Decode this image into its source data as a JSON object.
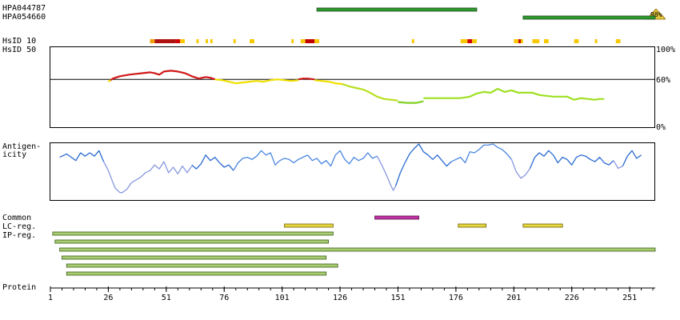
{
  "antibodies": [
    {
      "id": "HPA044787",
      "start": 116,
      "end": 185,
      "coverage_badge": ""
    },
    {
      "id": "HPA054660",
      "start": 205,
      "end": 262,
      "coverage_badge": "98%"
    }
  ],
  "hsid_labels": {
    "hsid10": "HsID 10",
    "hsid50": "HsID 50"
  },
  "hsid_marks": [
    {
      "start": 44,
      "end": 46,
      "color": "#f0a000"
    },
    {
      "start": 46,
      "end": 55,
      "color": "#b01010"
    },
    {
      "start": 55,
      "end": 57,
      "color": "#d00000"
    },
    {
      "start": 57,
      "end": 59,
      "color": "#f8c800"
    },
    {
      "start": 64,
      "end": 65,
      "color": "#f8c800"
    },
    {
      "start": 68,
      "end": 69,
      "color": "#f8c800"
    },
    {
      "start": 70,
      "end": 71,
      "color": "#f8c800"
    },
    {
      "start": 80,
      "end": 81,
      "color": "#f8c800"
    },
    {
      "start": 87,
      "end": 89,
      "color": "#f8c800"
    },
    {
      "start": 105,
      "end": 106,
      "color": "#f8c800"
    },
    {
      "start": 109,
      "end": 111,
      "color": "#f8c800"
    },
    {
      "start": 111,
      "end": 115,
      "color": "#c00000"
    },
    {
      "start": 115,
      "end": 117,
      "color": "#f8c800"
    },
    {
      "start": 157,
      "end": 158,
      "color": "#f8c800"
    },
    {
      "start": 178,
      "end": 181,
      "color": "#f8c800"
    },
    {
      "start": 181,
      "end": 183,
      "color": "#d00000"
    },
    {
      "start": 183,
      "end": 185,
      "color": "#f8c800"
    },
    {
      "start": 201,
      "end": 203,
      "color": "#f8c800"
    },
    {
      "start": 203,
      "end": 204,
      "color": "#d00000"
    },
    {
      "start": 204,
      "end": 205,
      "color": "#f8c800"
    },
    {
      "start": 209,
      "end": 212,
      "color": "#f8c800"
    },
    {
      "start": 214,
      "end": 216,
      "color": "#f8c800"
    },
    {
      "start": 227,
      "end": 229,
      "color": "#f8c800"
    },
    {
      "start": 236,
      "end": 237,
      "color": "#f8c800"
    },
    {
      "start": 245,
      "end": 247,
      "color": "#f8c800"
    }
  ],
  "identity_panel": {
    "y_tick_labels": [
      "100%",
      "60%",
      "0%"
    ],
    "y_ticks": [
      100,
      60,
      0
    ],
    "reference_line": 60,
    "ylim": [
      0,
      100
    ],
    "segments": [
      {
        "color": "#f0e000",
        "points": [
          [
            26,
            57
          ],
          [
            27,
            59
          ]
        ]
      },
      {
        "color": "#d01818",
        "points": [
          [
            27,
            59
          ],
          [
            28,
            61
          ],
          [
            31,
            64
          ],
          [
            35,
            66
          ],
          [
            38,
            67
          ],
          [
            41,
            68
          ],
          [
            44,
            69
          ],
          [
            46,
            68
          ],
          [
            48,
            66
          ],
          [
            50,
            70
          ],
          [
            53,
            71
          ],
          [
            56,
            70
          ],
          [
            59,
            68
          ],
          [
            62,
            64
          ],
          [
            65,
            61
          ],
          [
            68,
            63
          ],
          [
            70,
            62
          ],
          [
            72,
            60
          ]
        ]
      },
      {
        "color": "#f0e000",
        "points": [
          [
            72,
            60
          ],
          [
            75,
            59
          ],
          [
            78,
            57
          ],
          [
            81,
            55
          ],
          [
            84,
            56
          ],
          [
            87,
            57
          ],
          [
            90,
            58
          ],
          [
            93,
            57
          ],
          [
            96,
            59
          ],
          [
            99,
            60
          ],
          [
            102,
            59
          ],
          [
            105,
            58
          ],
          [
            108,
            59
          ]
        ]
      },
      {
        "color": "#d01818",
        "points": [
          [
            108,
            60
          ],
          [
            110,
            61
          ],
          [
            112,
            61
          ],
          [
            115,
            60
          ]
        ]
      },
      {
        "color": "#f0e000",
        "points": [
          [
            115,
            59
          ],
          [
            118,
            58
          ],
          [
            121,
            57
          ],
          [
            124,
            55
          ],
          [
            127,
            54
          ]
        ]
      },
      {
        "color": "#b8e020",
        "points": [
          [
            127,
            54
          ],
          [
            130,
            51
          ],
          [
            133,
            49
          ],
          [
            136,
            47
          ],
          [
            139,
            43
          ],
          [
            142,
            38
          ],
          [
            145,
            35
          ],
          [
            148,
            34
          ],
          [
            151,
            33
          ]
        ]
      },
      {
        "color": "#80d020",
        "points": [
          [
            151,
            31
          ],
          [
            155,
            30
          ],
          [
            159,
            30
          ],
          [
            162,
            32
          ]
        ]
      },
      {
        "color": "#9ee020",
        "points": [
          [
            162,
            36
          ],
          [
            166,
            36
          ],
          [
            170,
            36
          ],
          [
            174,
            36
          ],
          [
            178,
            36
          ],
          [
            182,
            38
          ],
          [
            185,
            42
          ],
          [
            188,
            44
          ],
          [
            191,
            43
          ],
          [
            194,
            48
          ],
          [
            197,
            44
          ],
          [
            200,
            46
          ],
          [
            203,
            43
          ],
          [
            206,
            43
          ],
          [
            209,
            43
          ],
          [
            212,
            40
          ],
          [
            215,
            39
          ],
          [
            218,
            38
          ],
          [
            221,
            38
          ],
          [
            224,
            38
          ],
          [
            227,
            34
          ],
          [
            230,
            36
          ],
          [
            233,
            35
          ],
          [
            236,
            34
          ],
          [
            238,
            35
          ],
          [
            240,
            35
          ]
        ]
      }
    ]
  },
  "antigenicity": {
    "label": "Antigen-\nicity",
    "segments": [
      {
        "color": "#2a6ad0",
        "points": [
          [
            5,
            76
          ],
          [
            8,
            82
          ],
          [
            10,
            76
          ],
          [
            12,
            70
          ],
          [
            14,
            84
          ],
          [
            16,
            78
          ],
          [
            18,
            84
          ],
          [
            20,
            78
          ],
          [
            22,
            88
          ],
          [
            24,
            68
          ]
        ]
      },
      {
        "color": "#8898e0",
        "points": [
          [
            24,
            68
          ],
          [
            26,
            52
          ],
          [
            28,
            30
          ],
          [
            29,
            20
          ],
          [
            30,
            16
          ],
          [
            31,
            12
          ],
          [
            32,
            12
          ],
          [
            34,
            18
          ],
          [
            36,
            30
          ],
          [
            38,
            35
          ],
          [
            40,
            40
          ],
          [
            42,
            48
          ],
          [
            44,
            52
          ],
          [
            46,
            62
          ],
          [
            48,
            55
          ],
          [
            50,
            68
          ],
          [
            52,
            48
          ],
          [
            54,
            58
          ],
          [
            56,
            46
          ],
          [
            58,
            60
          ],
          [
            60,
            48
          ],
          [
            62,
            60
          ]
        ]
      },
      {
        "color": "#2a6ad0",
        "points": [
          [
            62,
            62
          ],
          [
            64,
            55
          ],
          [
            66,
            64
          ],
          [
            68,
            80
          ],
          [
            70,
            70
          ],
          [
            72,
            76
          ],
          [
            74,
            66
          ],
          [
            76,
            58
          ],
          [
            78,
            62
          ],
          [
            80,
            52
          ]
        ]
      },
      {
        "color": "#4a86e0",
        "points": [
          [
            80,
            52
          ],
          [
            82,
            66
          ],
          [
            84,
            74
          ],
          [
            86,
            76
          ],
          [
            88,
            72
          ],
          [
            90,
            78
          ],
          [
            92,
            88
          ],
          [
            94,
            80
          ],
          [
            96,
            84
          ],
          [
            98,
            62
          ],
          [
            100,
            70
          ],
          [
            102,
            74
          ],
          [
            104,
            72
          ],
          [
            106,
            66
          ],
          [
            108,
            72
          ],
          [
            110,
            76
          ],
          [
            112,
            80
          ],
          [
            114,
            70
          ],
          [
            116,
            74
          ],
          [
            118,
            64
          ],
          [
            120,
            70
          ],
          [
            122,
            60
          ],
          [
            124,
            80
          ],
          [
            126,
            88
          ],
          [
            128,
            72
          ],
          [
            130,
            64
          ],
          [
            132,
            76
          ],
          [
            134,
            70
          ],
          [
            136,
            74
          ],
          [
            138,
            84
          ],
          [
            140,
            74
          ],
          [
            142,
            78
          ]
        ]
      },
      {
        "color": "#8898e0",
        "points": [
          [
            142,
            78
          ],
          [
            144,
            62
          ],
          [
            146,
            44
          ],
          [
            148,
            24
          ],
          [
            149,
            16
          ],
          [
            150,
            24
          ]
        ]
      },
      {
        "color": "#2a6ad0",
        "points": [
          [
            150,
            24
          ],
          [
            152,
            48
          ],
          [
            154,
            66
          ],
          [
            156,
            82
          ],
          [
            158,
            92
          ],
          [
            160,
            100
          ],
          [
            162,
            86
          ],
          [
            164,
            80
          ],
          [
            166,
            72
          ],
          [
            168,
            80
          ],
          [
            170,
            70
          ],
          [
            172,
            60
          ],
          [
            174,
            68
          ]
        ]
      },
      {
        "color": "#4a86e0",
        "points": [
          [
            174,
            68
          ],
          [
            176,
            72
          ],
          [
            178,
            76
          ],
          [
            180,
            66
          ],
          [
            182,
            86
          ],
          [
            184,
            84
          ],
          [
            186,
            90
          ],
          [
            188,
            98
          ],
          [
            190,
            98
          ],
          [
            192,
            100
          ],
          [
            194,
            94
          ],
          [
            196,
            90
          ],
          [
            198,
            82
          ],
          [
            200,
            72
          ]
        ]
      },
      {
        "color": "#8898e0",
        "points": [
          [
            200,
            72
          ],
          [
            202,
            50
          ],
          [
            204,
            38
          ],
          [
            206,
            44
          ],
          [
            208,
            56
          ]
        ]
      },
      {
        "color": "#2a6ad0",
        "points": [
          [
            208,
            56
          ],
          [
            210,
            76
          ],
          [
            212,
            84
          ],
          [
            214,
            78
          ],
          [
            216,
            88
          ],
          [
            218,
            80
          ],
          [
            220,
            66
          ],
          [
            222,
            76
          ],
          [
            224,
            72
          ],
          [
            226,
            62
          ],
          [
            228,
            76
          ],
          [
            230,
            80
          ],
          [
            232,
            78
          ],
          [
            234,
            72
          ],
          [
            236,
            68
          ],
          [
            238,
            76
          ],
          [
            240,
            66
          ],
          [
            242,
            62
          ],
          [
            244,
            70
          ]
        ]
      },
      {
        "color": "#8898e0",
        "points": [
          [
            244,
            70
          ],
          [
            246,
            56
          ],
          [
            248,
            60
          ]
        ]
      },
      {
        "color": "#2a6ad0",
        "points": [
          [
            248,
            60
          ],
          [
            250,
            78
          ],
          [
            252,
            88
          ],
          [
            254,
            74
          ],
          [
            256,
            80
          ]
        ]
      }
    ]
  },
  "region_labels": {
    "common": "Common",
    "lc_reg": "LC-reg.",
    "ip_reg": "IP-reg."
  },
  "common_bars": [
    {
      "start": 141,
      "end": 160,
      "color": "#c030a0"
    }
  ],
  "lc_bars": [
    {
      "start": 102,
      "end": 123,
      "color": "#e8d840"
    },
    {
      "start": 177,
      "end": 189,
      "color": "#e8d840"
    },
    {
      "start": 205,
      "end": 222,
      "color": "#e8d840"
    }
  ],
  "ip_bars": [
    {
      "start": 2,
      "end": 123
    },
    {
      "start": 3,
      "end": 121
    },
    {
      "start": 5,
      "end": 262
    },
    {
      "start": 6,
      "end": 120
    },
    {
      "start": 8,
      "end": 125
    },
    {
      "start": 8,
      "end": 120
    }
  ],
  "protein_axis": {
    "label": "Protein",
    "length": 262,
    "ticks": [
      1,
      26,
      51,
      76,
      101,
      126,
      151,
      176,
      201,
      226,
      251
    ]
  },
  "colors": {
    "antibody_bar": "#2e9a2e",
    "ip_bar": "#a8cc70",
    "badge": "#e8c840"
  }
}
